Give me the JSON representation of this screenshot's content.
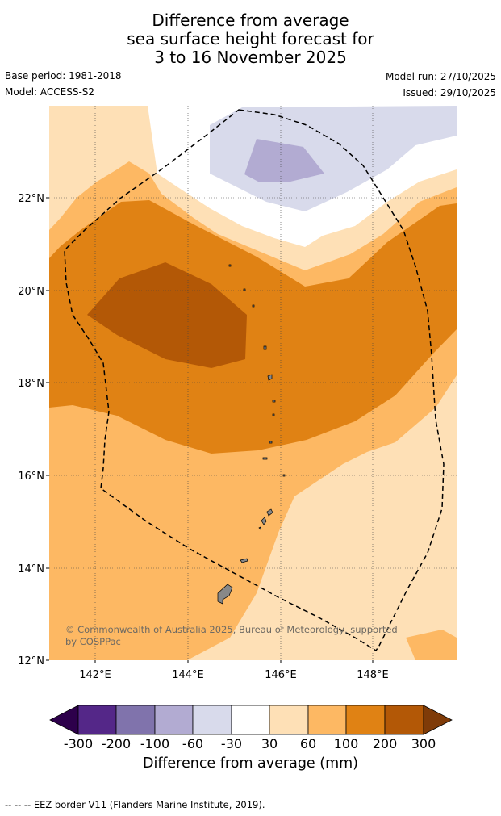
{
  "title": {
    "line1": "Difference from average",
    "line2": "sea surface height forecast for",
    "line3": "3 to 16 November 2025"
  },
  "meta": {
    "base_period": "Base period: 1981-2018",
    "model": "Model: ACCESS-S2",
    "model_run": "Model run: 27/10/2025",
    "issued": "Issued: 29/10/2025"
  },
  "map": {
    "lat_labels": [
      "22°N",
      "20°N",
      "18°N",
      "16°N",
      "14°N",
      "12°N"
    ],
    "lon_labels": [
      "142°E",
      "144°E",
      "146°E",
      "148°E"
    ],
    "copyright": "© Commonwealth of Australia 2025, Bureau of Meteorology, supported by COSPPac",
    "copyright_line1": "© Commonwealth of Australia 2025, Bureau of Meteorology, supported",
    "copyright_line2": "by COSPPac"
  },
  "colorbar": {
    "ticks": [
      "-300",
      "-200",
      "-100",
      "-60",
      "-30",
      "30",
      "60",
      "100",
      "200",
      "300"
    ],
    "label": "Difference from average (mm)",
    "colors": {
      "lt_-300": "#2d004b",
      "-300_-200": "#542788",
      "-200_-100": "#8073ac",
      "-100_-60": "#b2abd2",
      "-60_-30": "#d8daeb",
      "-30_30": "#ffffff",
      "30_60": "#fee0b6",
      "60_100": "#fdb863",
      "100_200": "#e08214",
      "200_300": "#b35806",
      "gt_300": "#7f3b08"
    }
  },
  "footer": "--  --  -- EEZ border V11 (Flanders Marine Institute, 2019)."
}
